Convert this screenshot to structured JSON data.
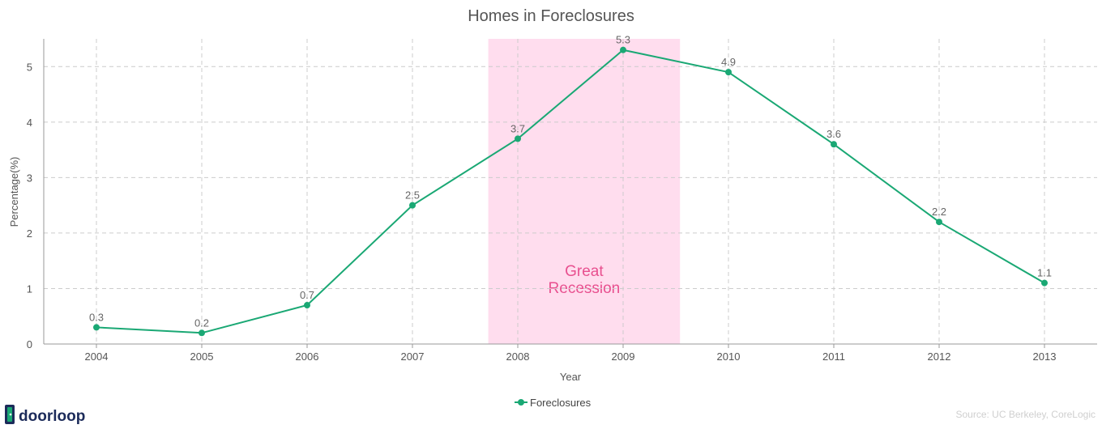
{
  "chart_data": {
    "type": "line",
    "title": "Homes in Foreclosures",
    "xlabel": "Year",
    "ylabel": "Percentage(%)",
    "x": [
      "2004",
      "2005",
      "2006",
      "2007",
      "2008",
      "2009",
      "2010",
      "2011",
      "2012",
      "2013"
    ],
    "series": [
      {
        "name": "Foreclosures",
        "color": "#1aa874",
        "values": [
          0.3,
          0.2,
          0.7,
          2.5,
          3.7,
          5.3,
          4.9,
          3.6,
          2.2,
          1.1
        ],
        "labels": [
          "0.3",
          "0.2",
          "0.7",
          "2.5",
          "3.7",
          "5.3",
          "4.9",
          "3.6",
          "2.2",
          "1.1"
        ]
      }
    ],
    "ylim": [
      0,
      5.5
    ],
    "yticks": [
      0,
      1,
      2,
      3,
      4,
      5
    ],
    "grid": true,
    "legend_position": "bottom-center",
    "annotation": {
      "lines": [
        "Great",
        "Recession"
      ],
      "x_start": 2007.72,
      "x_end": 2009.54,
      "color": "#ffddee",
      "text_color": "#e8508f"
    }
  },
  "source": "Source: UC Berkeley, CoreLogic",
  "logo": {
    "text": "doorloop",
    "icon": "door-icon",
    "color": "#1c2b5a",
    "accent": "#1aa874"
  }
}
